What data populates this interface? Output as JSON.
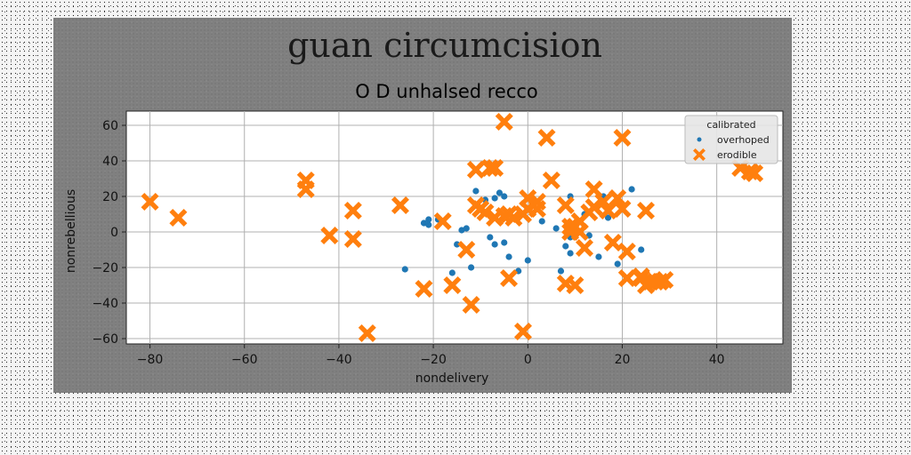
{
  "chart_data": {
    "type": "scatter",
    "title": "guan circumcision",
    "subtitle": "O D unhalsed recco",
    "xlabel": "nondelivery",
    "ylabel": "nonrebellious",
    "xlim": [
      -85,
      54
    ],
    "ylim": [
      -63,
      68
    ],
    "xticks": [
      -80,
      -60,
      -40,
      -20,
      0,
      20,
      40
    ],
    "yticks": [
      -60,
      -40,
      -20,
      0,
      20,
      40,
      60
    ],
    "grid": true,
    "legend": {
      "title": "calibrated",
      "position": "top-right"
    },
    "colors": {
      "overhoped": "#1f77b4",
      "erodible": "#ff7f0e"
    },
    "series": [
      {
        "name": "overhoped",
        "marker": "circle",
        "points": [
          [
            -26,
            -21
          ],
          [
            -22,
            5
          ],
          [
            -21,
            7
          ],
          [
            -21,
            4
          ],
          [
            -19,
            7
          ],
          [
            -16,
            -23
          ],
          [
            -15,
            -7
          ],
          [
            -14,
            1
          ],
          [
            -13,
            2
          ],
          [
            -12,
            -20
          ],
          [
            -11,
            23
          ],
          [
            -9,
            18
          ],
          [
            -8,
            -3
          ],
          [
            -7,
            -7
          ],
          [
            -7,
            19
          ],
          [
            -6,
            22
          ],
          [
            -5,
            -6
          ],
          [
            -5,
            20
          ],
          [
            -4,
            -14
          ],
          [
            -2,
            -22
          ],
          [
            0,
            -16
          ],
          [
            3,
            6
          ],
          [
            6,
            2
          ],
          [
            7,
            -22
          ],
          [
            8,
            -8
          ],
          [
            9,
            -3
          ],
          [
            9,
            20
          ],
          [
            9,
            -12
          ],
          [
            12,
            10
          ],
          [
            13,
            -2
          ],
          [
            15,
            -14
          ],
          [
            16,
            20
          ],
          [
            17,
            8
          ],
          [
            18,
            -6
          ],
          [
            19,
            -18
          ],
          [
            22,
            24
          ],
          [
            24,
            -10
          ]
        ]
      },
      {
        "name": "erodible",
        "marker": "x",
        "points": [
          [
            -80,
            17
          ],
          [
            -74,
            8
          ],
          [
            -47,
            29
          ],
          [
            -47,
            24
          ],
          [
            -42,
            -2
          ],
          [
            -37,
            12
          ],
          [
            -37,
            -4
          ],
          [
            -34,
            -57
          ],
          [
            -27,
            15
          ],
          [
            -22,
            -32
          ],
          [
            -18,
            6
          ],
          [
            -16,
            -30
          ],
          [
            -13,
            -10
          ],
          [
            -12,
            -41
          ],
          [
            -11,
            35
          ],
          [
            -11,
            15
          ],
          [
            -10,
            13
          ],
          [
            -9,
            11
          ],
          [
            -8,
            36
          ],
          [
            -7,
            36
          ],
          [
            -7,
            8
          ],
          [
            -5,
            9
          ],
          [
            -5,
            62
          ],
          [
            -4,
            -26
          ],
          [
            -4,
            10
          ],
          [
            -3,
            8
          ],
          [
            -1,
            10
          ],
          [
            -1,
            -56
          ],
          [
            0,
            13
          ],
          [
            0,
            19
          ],
          [
            2,
            13
          ],
          [
            2,
            17
          ],
          [
            4,
            53
          ],
          [
            5,
            29
          ],
          [
            8,
            15
          ],
          [
            8,
            -29
          ],
          [
            9,
            3
          ],
          [
            9,
            0
          ],
          [
            10,
            -30
          ],
          [
            10,
            3
          ],
          [
            11,
            0
          ],
          [
            11,
            6
          ],
          [
            12,
            -9
          ],
          [
            13,
            11
          ],
          [
            14,
            24
          ],
          [
            14,
            14
          ],
          [
            16,
            17
          ],
          [
            17,
            12
          ],
          [
            18,
            -6
          ],
          [
            19,
            19
          ],
          [
            20,
            13
          ],
          [
            20,
            53
          ],
          [
            21,
            -11
          ],
          [
            21,
            -26
          ],
          [
            24,
            -25
          ],
          [
            24,
            -26
          ],
          [
            25,
            12
          ],
          [
            25,
            -30
          ],
          [
            26,
            -28
          ],
          [
            27,
            -28
          ],
          [
            28,
            -28
          ],
          [
            29,
            -27
          ],
          [
            45,
            36
          ],
          [
            47,
            34
          ],
          [
            48,
            33
          ]
        ]
      }
    ]
  }
}
